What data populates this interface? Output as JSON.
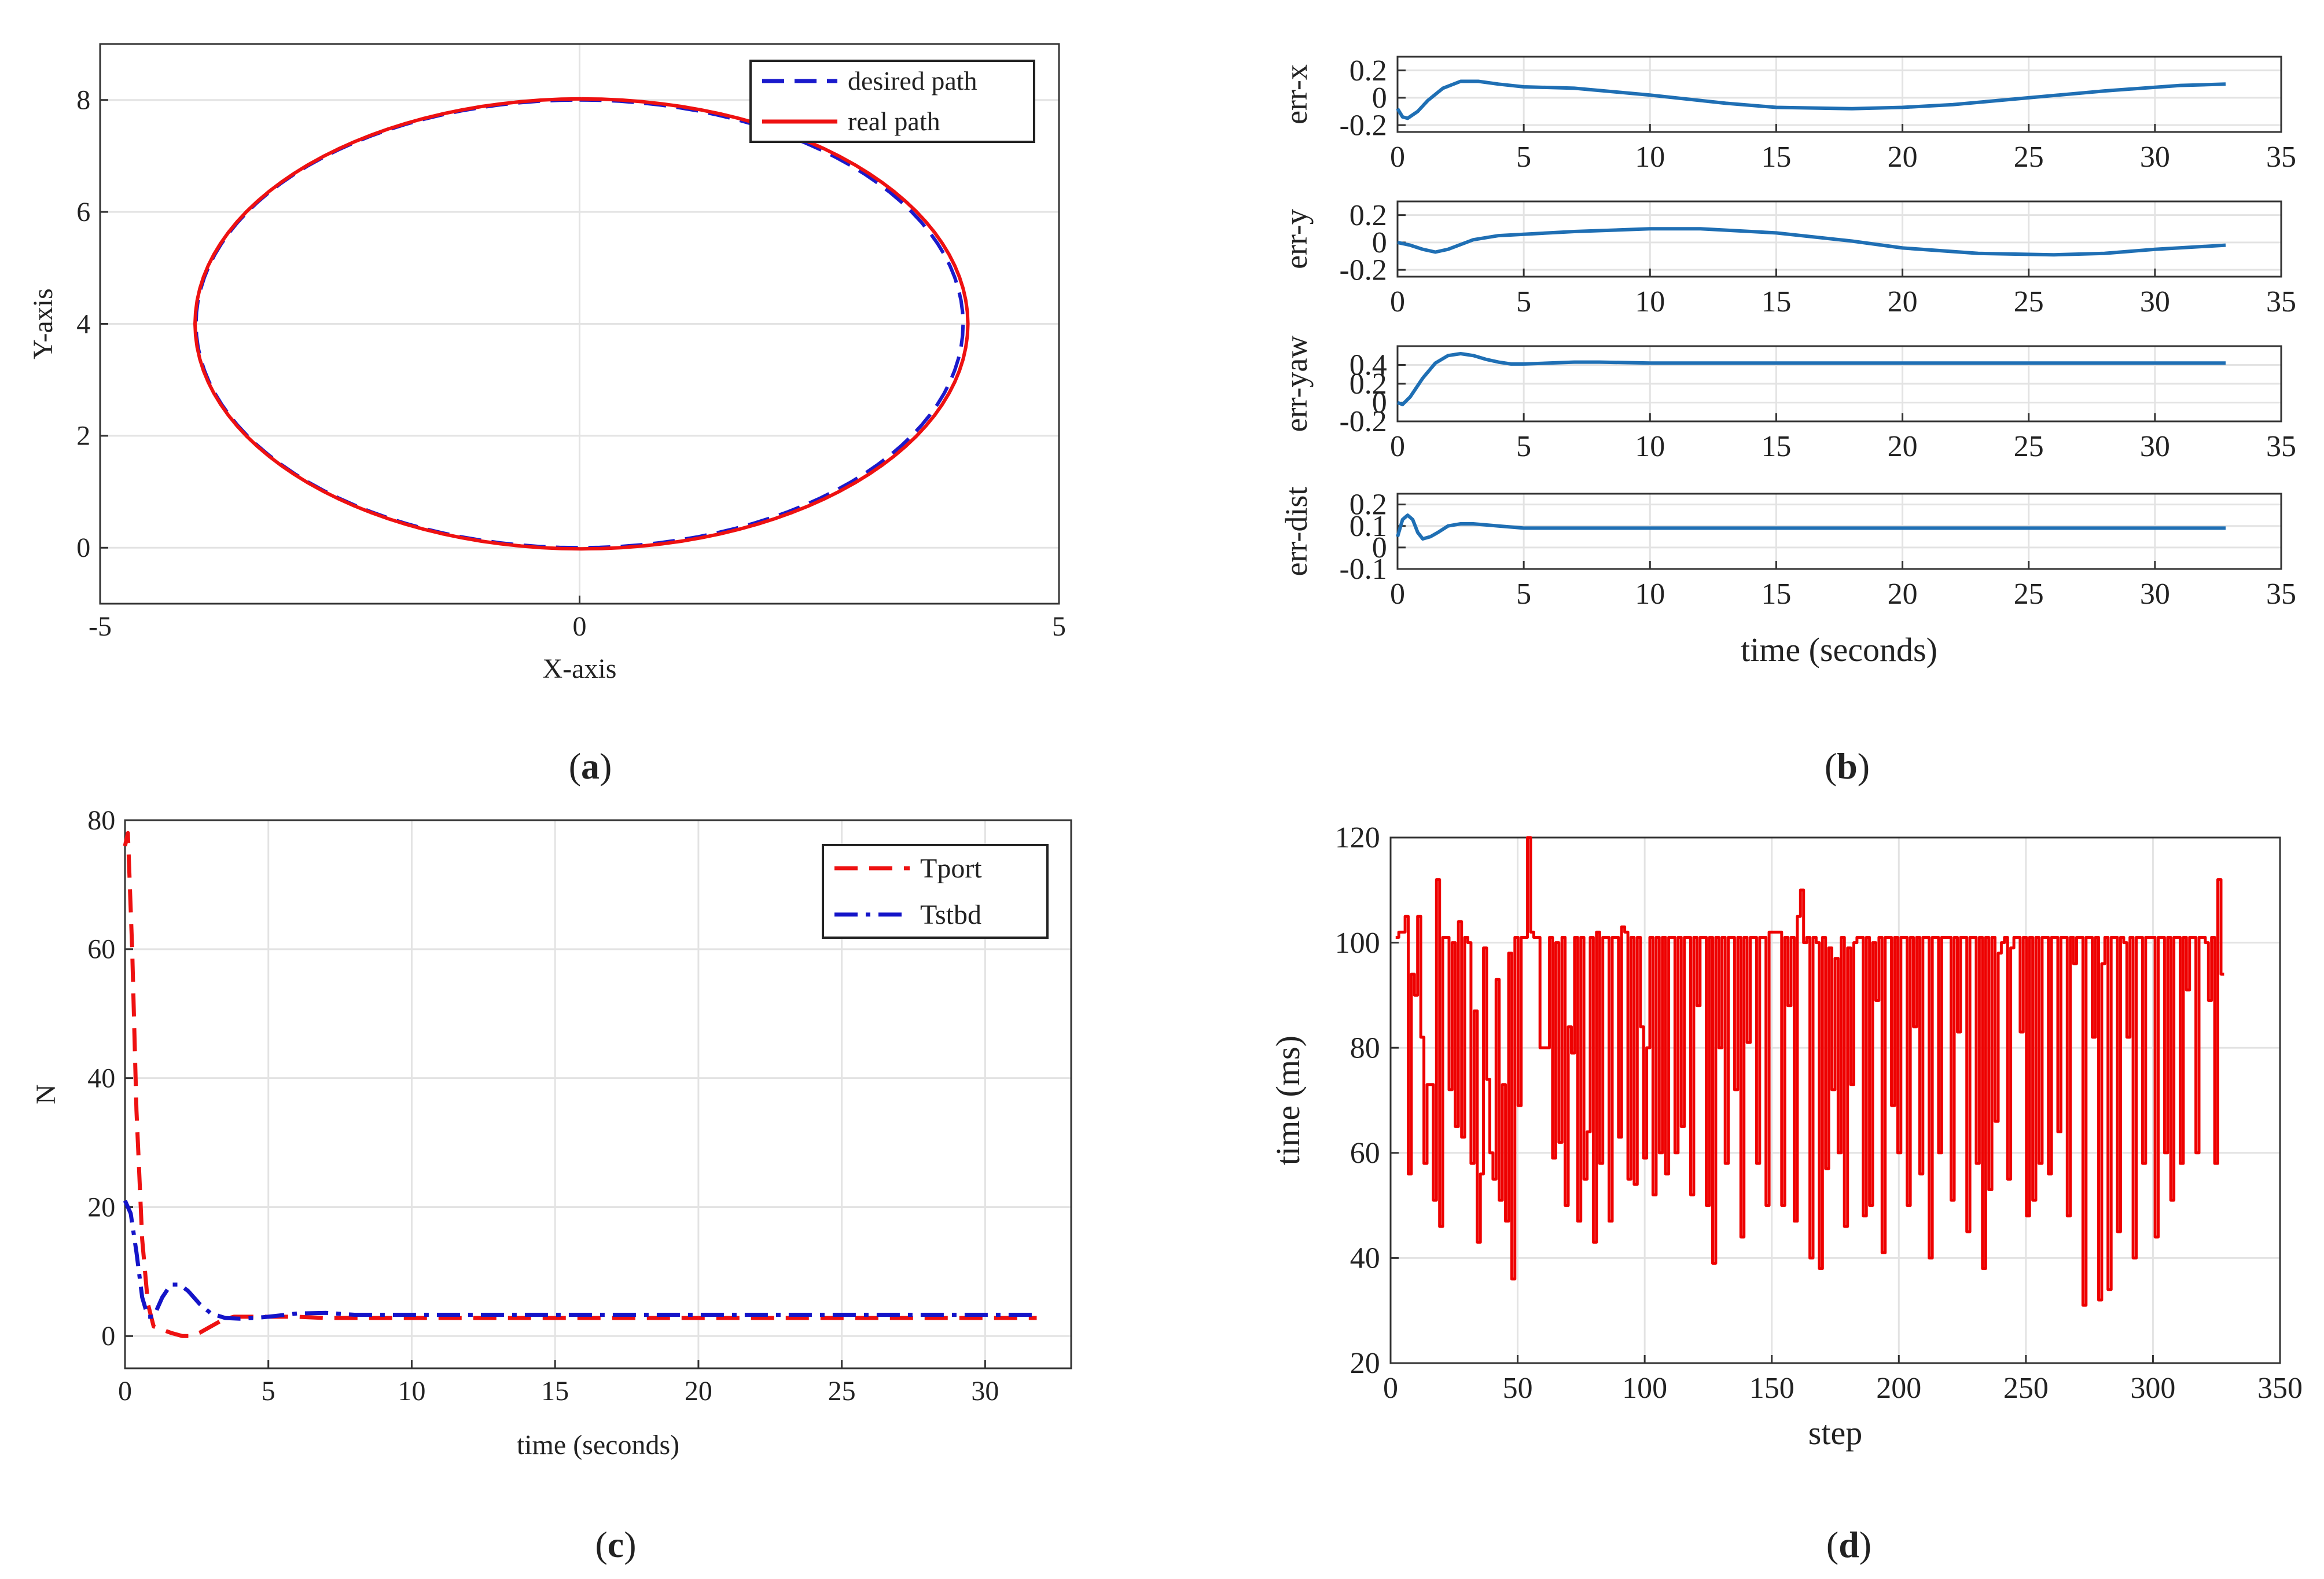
{
  "panels": [
    {
      "label_prefix": "(",
      "label_letter": "a",
      "label_suffix": ")"
    },
    {
      "label_prefix": "(",
      "label_letter": "b",
      "label_suffix": ")"
    },
    {
      "label_prefix": "(",
      "label_letter": "c",
      "label_suffix": ")"
    },
    {
      "label_prefix": "(",
      "label_letter": "d",
      "label_suffix": ")"
    }
  ],
  "colors": {
    "desired": "#1a1acc",
    "real": "#ee1111",
    "err": "#1f6fb4",
    "tport": "#ee1111",
    "tstbd": "#1414c8",
    "step": "#ee0000"
  },
  "chart_data": [
    {
      "id": "a",
      "type": "line",
      "xlabel": "X-axis",
      "ylabel": "Y-axis",
      "xlim": [
        -5,
        5
      ],
      "ylim": [
        -1,
        9
      ],
      "xticks": [
        -5,
        0,
        5
      ],
      "yticks": [
        0,
        2,
        4,
        6,
        8
      ],
      "grid": true,
      "legend": "top-right",
      "series": [
        {
          "name": "desired path",
          "style": "dashed",
          "shape": "ellipse",
          "center": [
            0,
            4
          ],
          "radii": [
            4,
            4
          ]
        },
        {
          "name": "real path",
          "style": "solid",
          "shape": "ellipse",
          "center": [
            0.02,
            4.0
          ],
          "radii": [
            4.03,
            4.02
          ]
        }
      ]
    },
    {
      "id": "b",
      "type": "line",
      "xlabel": "time (seconds)",
      "grid": true,
      "subplots": [
        {
          "ylabel": "err-x",
          "xlim": [
            0,
            35
          ],
          "ylim": [
            -0.25,
            0.3
          ],
          "xticks": [
            0,
            5,
            10,
            15,
            20,
            25,
            30,
            35
          ],
          "yticks": [
            0.2,
            0,
            -0.2
          ],
          "x": [
            0,
            0.2,
            0.4,
            0.8,
            1.2,
            1.8,
            2.5,
            3.2,
            4,
            5,
            7,
            10,
            13,
            15,
            18,
            20,
            22,
            25,
            28,
            31,
            32.8
          ],
          "y": [
            -0.08,
            -0.14,
            -0.15,
            -0.1,
            -0.02,
            0.07,
            0.12,
            0.12,
            0.1,
            0.08,
            0.07,
            0.02,
            -0.04,
            -0.07,
            -0.08,
            -0.07,
            -0.05,
            0.0,
            0.05,
            0.09,
            0.1
          ]
        },
        {
          "ylabel": "err-y",
          "xlim": [
            0,
            35
          ],
          "ylim": [
            -0.25,
            0.3
          ],
          "xticks": [
            0,
            5,
            10,
            15,
            20,
            25,
            30,
            35
          ],
          "yticks": [
            0.2,
            0,
            -0.2
          ],
          "x": [
            0,
            0.5,
            1,
            1.5,
            2,
            3,
            4,
            5,
            7,
            10,
            12,
            15,
            18,
            20,
            23,
            26,
            28,
            30,
            32.8
          ],
          "y": [
            0.0,
            -0.02,
            -0.05,
            -0.07,
            -0.05,
            0.02,
            0.05,
            0.06,
            0.08,
            0.1,
            0.1,
            0.07,
            0.01,
            -0.04,
            -0.08,
            -0.09,
            -0.08,
            -0.05,
            -0.02
          ]
        },
        {
          "ylabel": "err-yaw",
          "xlim": [
            0,
            35
          ],
          "ylim": [
            -0.2,
            0.6
          ],
          "xticks": [
            0,
            5,
            10,
            15,
            20,
            25,
            30,
            35
          ],
          "yticks": [
            0.4,
            0.2,
            0,
            -0.2
          ],
          "x": [
            0,
            0.2,
            0.5,
            1,
            1.5,
            2,
            2.5,
            3,
            3.5,
            4,
            4.5,
            5,
            6,
            7,
            8,
            10,
            15,
            20,
            25,
            30,
            32.8
          ],
          "y": [
            0.0,
            -0.02,
            0.06,
            0.26,
            0.42,
            0.5,
            0.52,
            0.5,
            0.46,
            0.43,
            0.41,
            0.41,
            0.42,
            0.43,
            0.43,
            0.42,
            0.42,
            0.42,
            0.42,
            0.42,
            0.42
          ]
        },
        {
          "ylabel": "err-dist",
          "xlim": [
            0,
            35
          ],
          "ylim": [
            -0.1,
            0.25
          ],
          "xticks": [
            0,
            5,
            10,
            15,
            20,
            25,
            30,
            35
          ],
          "yticks": [
            0.2,
            0.1,
            0,
            -0.1
          ],
          "x": [
            0,
            0.2,
            0.4,
            0.6,
            0.8,
            1,
            1.3,
            1.6,
            2,
            2.5,
            3,
            4,
            5,
            6,
            8,
            10,
            15,
            20,
            25,
            30,
            32.8
          ],
          "y": [
            0.05,
            0.13,
            0.15,
            0.13,
            0.07,
            0.04,
            0.05,
            0.07,
            0.1,
            0.11,
            0.11,
            0.1,
            0.09,
            0.09,
            0.09,
            0.09,
            0.09,
            0.09,
            0.09,
            0.09,
            0.09
          ]
        }
      ]
    },
    {
      "id": "c",
      "type": "line",
      "xlabel": "time (seconds)",
      "ylabel": "N",
      "xlim": [
        0,
        33
      ],
      "ylim": [
        -5,
        80
      ],
      "xticks": [
        0,
        5,
        10,
        15,
        20,
        25,
        30
      ],
      "yticks": [
        0,
        20,
        40,
        60,
        80
      ],
      "grid": true,
      "legend": "top-right",
      "series": [
        {
          "name": "Tport",
          "style": "dashed",
          "x": [
            0,
            0.1,
            0.25,
            0.4,
            0.6,
            0.8,
            1,
            1.3,
            1.6,
            2,
            2.3,
            2.6,
            3,
            3.4,
            3.8,
            4.5,
            5,
            6,
            7,
            10,
            15,
            20,
            25,
            30,
            31.8
          ],
          "y": [
            76,
            78,
            60,
            35,
            15,
            5,
            1.5,
            1,
            0.5,
            0,
            0,
            0.5,
            1.5,
            2.5,
            3,
            3,
            3,
            3,
            2.8,
            2.8,
            2.8,
            2.8,
            2.8,
            2.8,
            2.8
          ]
        },
        {
          "name": "Tstbd",
          "style": "dashdot",
          "x": [
            0,
            0.2,
            0.4,
            0.6,
            0.8,
            1,
            1.3,
            1.6,
            1.9,
            2.2,
            2.6,
            3,
            3.5,
            4,
            4.5,
            5,
            6,
            7,
            8,
            10,
            15,
            20,
            25,
            30,
            31.8
          ],
          "y": [
            21,
            19,
            13,
            6,
            3,
            3,
            6,
            8,
            8,
            7,
            5,
            3.5,
            2.8,
            2.7,
            2.8,
            3,
            3.5,
            3.6,
            3.3,
            3.3,
            3.3,
            3.3,
            3.3,
            3.3,
            3.3
          ]
        }
      ]
    },
    {
      "id": "d",
      "type": "line",
      "xlabel": "step",
      "ylabel": "time (ms)",
      "xlim": [
        0,
        350
      ],
      "ylim": [
        20,
        120
      ],
      "xticks": [
        0,
        50,
        100,
        150,
        200,
        250,
        300,
        350
      ],
      "yticks": [
        20,
        40,
        60,
        80,
        100,
        120
      ],
      "grid": true,
      "step_plot": true,
      "y": [
        101,
        102,
        102,
        105,
        56,
        94,
        90,
        105,
        82,
        58,
        73,
        73,
        51,
        112,
        46,
        101,
        101,
        72,
        100,
        65,
        104,
        63,
        101,
        100,
        58,
        87,
        43,
        56,
        99,
        74,
        60,
        55,
        93,
        51,
        73,
        47,
        98,
        36,
        101,
        69,
        101,
        101,
        120,
        102,
        101,
        101,
        80,
        80,
        80,
        101,
        59,
        100,
        62,
        101,
        50,
        84,
        79,
        101,
        47,
        101,
        55,
        64,
        101,
        43,
        102,
        58,
        101,
        101,
        47,
        101,
        101,
        63,
        103,
        102,
        55,
        101,
        54,
        101,
        84,
        59,
        80,
        101,
        52,
        101,
        60,
        101,
        56,
        101,
        101,
        60,
        101,
        65,
        101,
        101,
        52,
        101,
        88,
        101,
        101,
        50,
        101,
        39,
        101,
        80,
        101,
        58,
        101,
        101,
        72,
        101,
        44,
        101,
        81,
        101,
        101,
        58,
        101,
        101,
        50,
        102,
        102,
        102,
        102,
        50,
        101,
        88,
        101,
        47,
        105,
        110,
        100,
        101,
        40,
        101,
        100,
        38,
        101,
        57,
        99,
        72,
        97,
        60,
        101,
        46,
        99,
        73,
        100,
        101,
        101,
        48,
        101,
        50,
        100,
        89,
        101,
        41,
        101,
        101,
        69,
        101,
        60,
        101,
        101,
        50,
        101,
        84,
        101,
        56,
        101,
        101,
        40,
        101,
        101,
        60,
        101,
        101,
        101,
        51,
        101,
        83,
        101,
        101,
        45,
        101,
        101,
        58,
        101,
        38,
        101,
        53,
        101,
        66,
        98,
        100,
        101,
        55,
        99,
        101,
        101,
        83,
        101,
        48,
        101,
        51,
        101,
        58,
        101,
        101,
        56,
        101,
        101,
        64,
        101,
        101,
        48,
        101,
        96,
        101,
        101,
        31,
        101,
        101,
        82,
        101,
        32,
        96,
        101,
        34,
        101,
        101,
        45,
        101,
        100,
        82,
        101,
        40,
        101,
        101,
        58,
        101,
        101,
        101,
        44,
        101,
        101,
        60,
        101,
        51,
        101,
        101,
        58,
        101,
        91,
        101,
        101,
        60,
        101,
        101,
        100,
        89,
        101,
        58,
        112,
        94
      ]
    }
  ]
}
